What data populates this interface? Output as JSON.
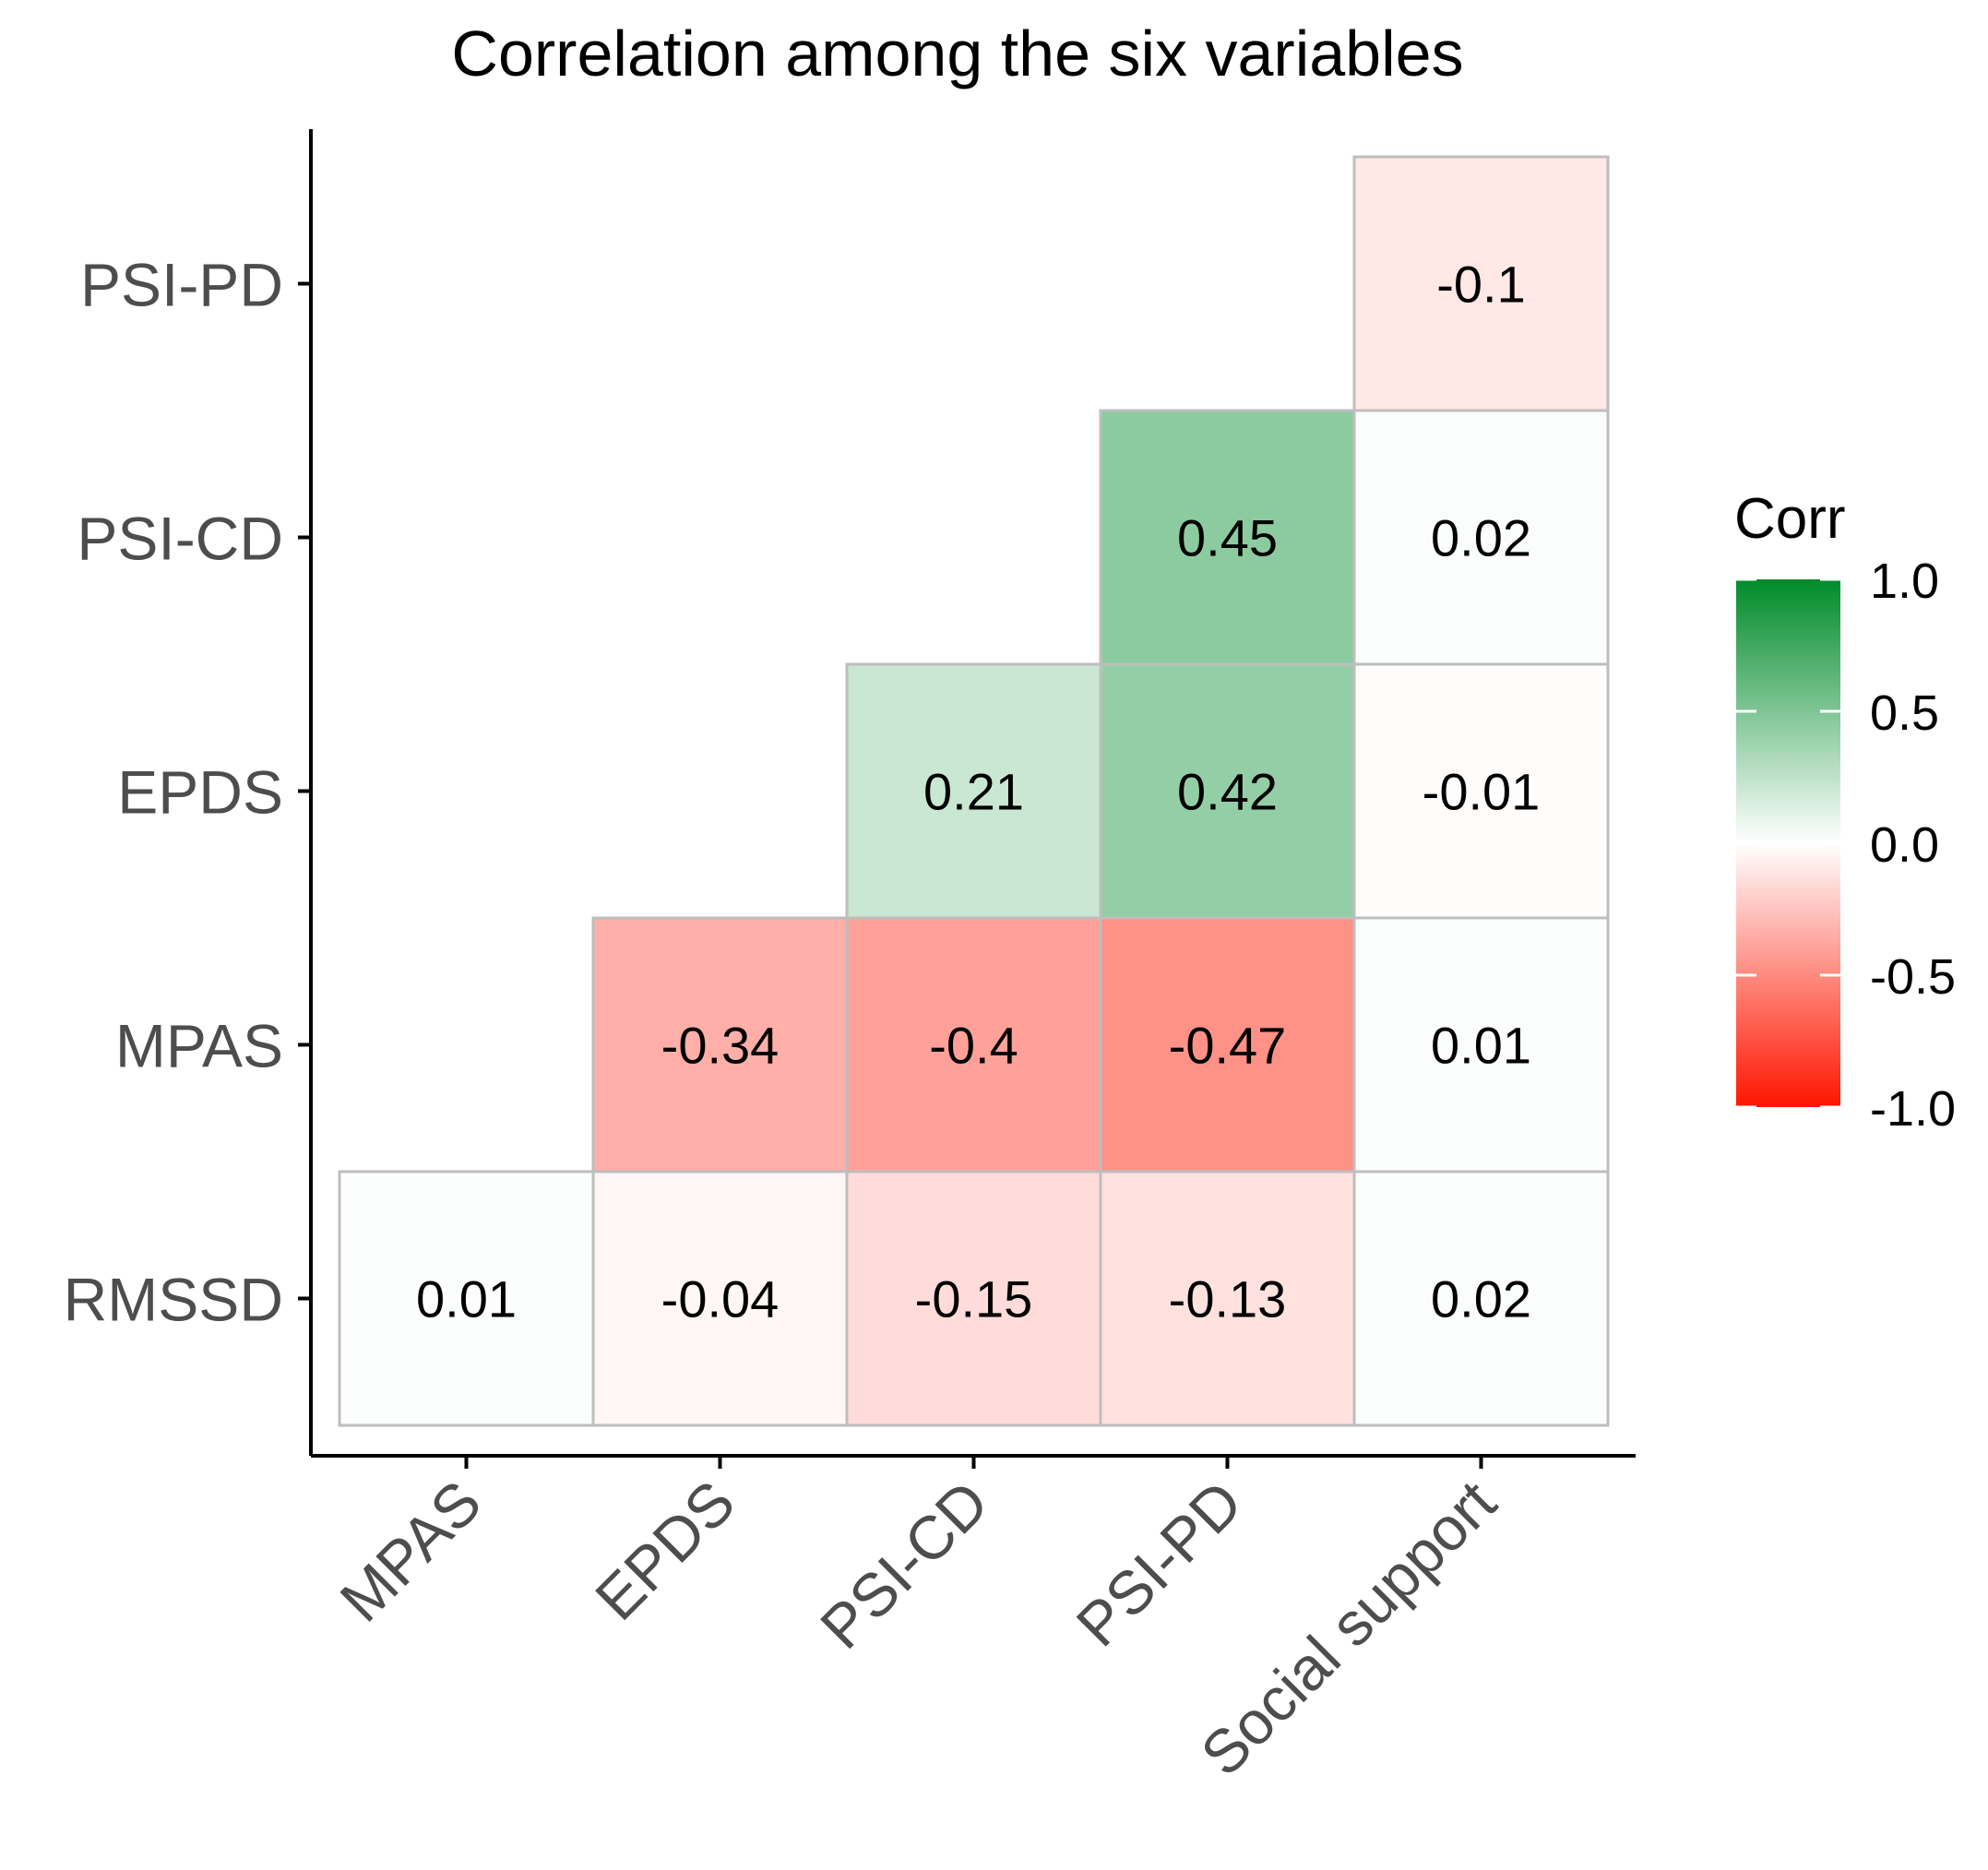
{
  "chart_data": {
    "type": "heatmap",
    "title": "Correlation among the six variables",
    "xlabel": "",
    "ylabel": "",
    "x_categories": [
      "MPAS",
      "EPDS",
      "PSI-CD",
      "PSI-PD",
      "Social support"
    ],
    "y_categories": [
      "RMSSD",
      "MPAS",
      "EPDS",
      "PSI-CD",
      "PSI-PD"
    ],
    "cells": [
      {
        "row": "RMSSD",
        "col": "MPAS",
        "value": 0.01,
        "label": "0.01"
      },
      {
        "row": "RMSSD",
        "col": "EPDS",
        "value": -0.04,
        "label": "-0.04"
      },
      {
        "row": "RMSSD",
        "col": "PSI-CD",
        "value": -0.15,
        "label": "-0.15"
      },
      {
        "row": "RMSSD",
        "col": "PSI-PD",
        "value": -0.13,
        "label": "-0.13"
      },
      {
        "row": "RMSSD",
        "col": "Social support",
        "value": 0.02,
        "label": "0.02"
      },
      {
        "row": "MPAS",
        "col": "EPDS",
        "value": -0.34,
        "label": "-0.34"
      },
      {
        "row": "MPAS",
        "col": "PSI-CD",
        "value": -0.4,
        "label": "-0.4"
      },
      {
        "row": "MPAS",
        "col": "PSI-PD",
        "value": -0.47,
        "label": "-0.47"
      },
      {
        "row": "MPAS",
        "col": "Social support",
        "value": 0.01,
        "label": "0.01"
      },
      {
        "row": "EPDS",
        "col": "PSI-CD",
        "value": 0.21,
        "label": "0.21"
      },
      {
        "row": "EPDS",
        "col": "PSI-PD",
        "value": 0.42,
        "label": "0.42"
      },
      {
        "row": "EPDS",
        "col": "Social support",
        "value": -0.01,
        "label": "-0.01"
      },
      {
        "row": "PSI-CD",
        "col": "PSI-PD",
        "value": 0.45,
        "label": "0.45"
      },
      {
        "row": "PSI-CD",
        "col": "Social support",
        "value": 0.02,
        "label": "0.02"
      },
      {
        "row": "PSI-PD",
        "col": "Social support",
        "value": -0.1,
        "label": "-0.1"
      }
    ],
    "legend": {
      "title": "Corr",
      "range": [
        -1.0,
        1.0
      ],
      "ticks": [
        {
          "value": 1.0,
          "label": "1.0"
        },
        {
          "value": 0.5,
          "label": "0.5"
        },
        {
          "value": 0.0,
          "label": "0.0"
        },
        {
          "value": -0.5,
          "label": "-0.5"
        },
        {
          "value": -1.0,
          "label": "-1.0"
        }
      ],
      "position": "right"
    },
    "colors": {
      "high": "#008B2A",
      "mid": "#FFFFFF",
      "low": "#FF1500",
      "cell_border": "#BEBEBE",
      "axis": "#000000",
      "axis_text": "#4D4D4D"
    }
  }
}
